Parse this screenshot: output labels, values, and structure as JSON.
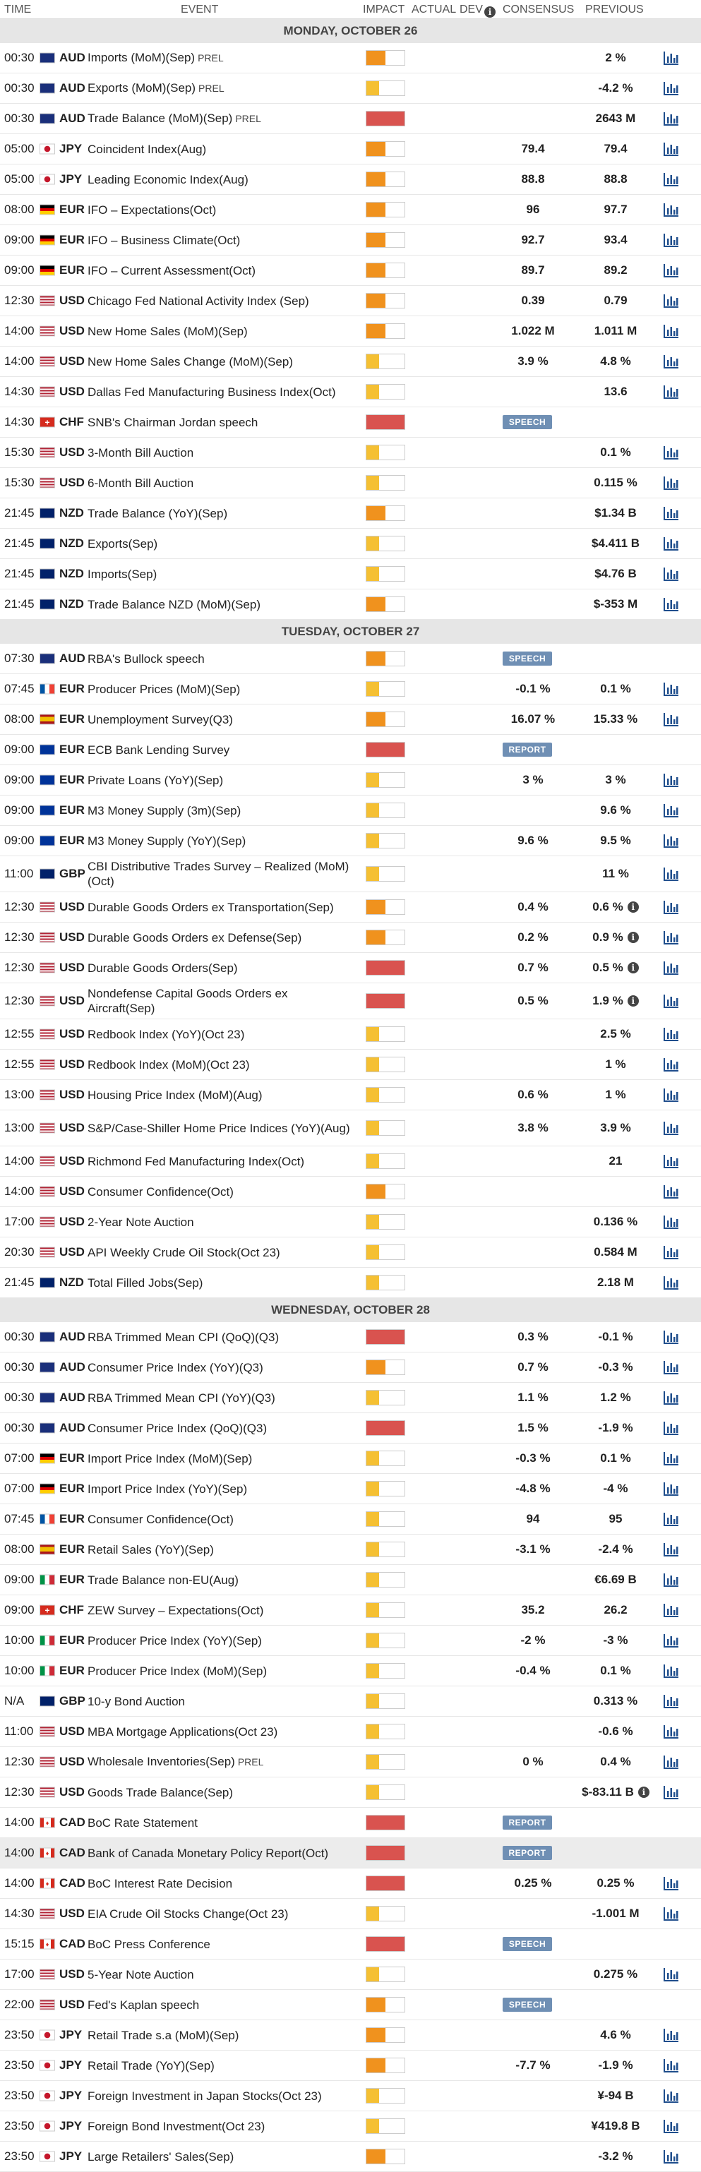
{
  "header": {
    "time": "TIME",
    "event": "EVENT",
    "impact": "IMPACT",
    "actual": "ACTUAL",
    "dev": "DEV",
    "consensus": "CONSENSUS",
    "previous": "PREVIOUS"
  },
  "colors": {
    "high": "#d9534f",
    "medium": "#f0921e",
    "low": "#f5c033",
    "badge": "#6f8fb4"
  },
  "days": [
    {
      "label": "MONDAY, OCTOBER 26",
      "rows": [
        {
          "time": "00:30",
          "flag": "au",
          "cur": "AUD",
          "event": "Imports (MoM)(Sep)",
          "tag": "PREL",
          "impact": "medium",
          "cons": "",
          "prev": "2 %",
          "chart": true
        },
        {
          "time": "00:30",
          "flag": "au",
          "cur": "AUD",
          "event": "Exports (MoM)(Sep)",
          "tag": "PREL",
          "impact": "low",
          "cons": "",
          "prev": "-4.2 %",
          "chart": true
        },
        {
          "time": "00:30",
          "flag": "au",
          "cur": "AUD",
          "event": "Trade Balance (MoM)(Sep)",
          "tag": "PREL",
          "impact": "high",
          "cons": "",
          "prev": "2643 M",
          "chart": true
        },
        {
          "time": "05:00",
          "flag": "jp",
          "cur": "JPY",
          "event": "Coincident Index(Aug)",
          "impact": "medium",
          "cons": "79.4",
          "prev": "79.4",
          "chart": true
        },
        {
          "time": "05:00",
          "flag": "jp",
          "cur": "JPY",
          "event": "Leading Economic Index(Aug)",
          "impact": "medium",
          "cons": "88.8",
          "prev": "88.8",
          "chart": true
        },
        {
          "time": "08:00",
          "flag": "de",
          "cur": "EUR",
          "event": "IFO – Expectations(Oct)",
          "impact": "medium",
          "cons": "96",
          "prev": "97.7",
          "chart": true
        },
        {
          "time": "09:00",
          "flag": "de",
          "cur": "EUR",
          "event": "IFO – Business Climate(Oct)",
          "impact": "medium",
          "cons": "92.7",
          "prev": "93.4",
          "chart": true
        },
        {
          "time": "09:00",
          "flag": "de",
          "cur": "EUR",
          "event": "IFO – Current Assessment(Oct)",
          "impact": "medium",
          "cons": "89.7",
          "prev": "89.2",
          "chart": true
        },
        {
          "time": "12:30",
          "flag": "us",
          "cur": "USD",
          "event": "Chicago Fed National Activity Index (Sep)",
          "impact": "medium",
          "cons": "0.39",
          "prev": "0.79",
          "chart": true
        },
        {
          "time": "14:00",
          "flag": "us",
          "cur": "USD",
          "event": "New Home Sales (MoM)(Sep)",
          "impact": "medium",
          "cons": "1.022 M",
          "prev": "1.011 M",
          "chart": true
        },
        {
          "time": "14:00",
          "flag": "us",
          "cur": "USD",
          "event": "New Home Sales Change (MoM)(Sep)",
          "impact": "low",
          "cons": "3.9 %",
          "prev": "4.8 %",
          "chart": true
        },
        {
          "time": "14:30",
          "flag": "us",
          "cur": "USD",
          "event": "Dallas Fed Manufacturing Business Index(Oct)",
          "impact": "low",
          "cons": "",
          "prev": "13.6",
          "chart": true
        },
        {
          "time": "14:30",
          "flag": "ch",
          "cur": "CHF",
          "event": "SNB's Chairman Jordan speech",
          "impact": "high",
          "badge": "SPEECH",
          "prev": "",
          "chart": false
        },
        {
          "time": "15:30",
          "flag": "us",
          "cur": "USD",
          "event": "3-Month Bill Auction",
          "impact": "low",
          "cons": "",
          "prev": "0.1 %",
          "chart": true
        },
        {
          "time": "15:30",
          "flag": "us",
          "cur": "USD",
          "event": "6-Month Bill Auction",
          "impact": "low",
          "cons": "",
          "prev": "0.115 %",
          "chart": true
        },
        {
          "time": "21:45",
          "flag": "nz",
          "cur": "NZD",
          "event": "Trade Balance (YoY)(Sep)",
          "impact": "medium",
          "cons": "",
          "prev": "$1.34 B",
          "chart": true
        },
        {
          "time": "21:45",
          "flag": "nz",
          "cur": "NZD",
          "event": "Exports(Sep)",
          "impact": "low",
          "cons": "",
          "prev": "$4.411 B",
          "chart": true
        },
        {
          "time": "21:45",
          "flag": "nz",
          "cur": "NZD",
          "event": "Imports(Sep)",
          "impact": "low",
          "cons": "",
          "prev": "$4.76 B",
          "chart": true
        },
        {
          "time": "21:45",
          "flag": "nz",
          "cur": "NZD",
          "event": "Trade Balance NZD (MoM)(Sep)",
          "impact": "medium",
          "cons": "",
          "prev": "$-353 M",
          "chart": true
        }
      ]
    },
    {
      "label": "TUESDAY, OCTOBER 27",
      "rows": [
        {
          "time": "07:30",
          "flag": "au",
          "cur": "AUD",
          "event": "RBA's Bullock speech",
          "impact": "medium",
          "badge": "SPEECH",
          "prev": "",
          "chart": false
        },
        {
          "time": "07:45",
          "flag": "fr",
          "cur": "EUR",
          "event": "Producer Prices (MoM)(Sep)",
          "impact": "low",
          "cons": "-0.1 %",
          "prev": "0.1 %",
          "chart": true
        },
        {
          "time": "08:00",
          "flag": "es",
          "cur": "EUR",
          "event": "Unemployment Survey(Q3)",
          "impact": "medium",
          "cons": "16.07 %",
          "prev": "15.33 %",
          "chart": true
        },
        {
          "time": "09:00",
          "flag": "eu",
          "cur": "EUR",
          "event": "ECB Bank Lending Survey",
          "impact": "high",
          "badge": "REPORT",
          "prev": "",
          "chart": false
        },
        {
          "time": "09:00",
          "flag": "eu",
          "cur": "EUR",
          "event": "Private Loans (YoY)(Sep)",
          "impact": "low",
          "cons": "3 %",
          "prev": "3 %",
          "chart": true
        },
        {
          "time": "09:00",
          "flag": "eu",
          "cur": "EUR",
          "event": "M3 Money Supply (3m)(Sep)",
          "impact": "low",
          "cons": "",
          "prev": "9.6 %",
          "chart": true
        },
        {
          "time": "09:00",
          "flag": "eu",
          "cur": "EUR",
          "event": "M3 Money Supply (YoY)(Sep)",
          "impact": "low",
          "cons": "9.6 %",
          "prev": "9.5 %",
          "chart": true
        },
        {
          "time": "11:00",
          "flag": "gb",
          "cur": "GBP",
          "event": "CBI Distributive Trades Survey – Realized (MoM)(Oct)",
          "impact": "low",
          "cons": "",
          "prev": "11 %",
          "chart": true,
          "tall": true
        },
        {
          "time": "12:30",
          "flag": "us",
          "cur": "USD",
          "event": "Durable Goods Orders ex Transportation(Sep)",
          "impact": "medium",
          "cons": "0.4 %",
          "prev": "0.6 %",
          "info": true,
          "chart": true
        },
        {
          "time": "12:30",
          "flag": "us",
          "cur": "USD",
          "event": "Durable Goods Orders ex Defense(Sep)",
          "impact": "medium",
          "cons": "0.2 %",
          "prev": "0.9 %",
          "info": true,
          "chart": true
        },
        {
          "time": "12:30",
          "flag": "us",
          "cur": "USD",
          "event": "Durable Goods Orders(Sep)",
          "impact": "high",
          "cons": "0.7 %",
          "prev": "0.5 %",
          "info": true,
          "chart": true
        },
        {
          "time": "12:30",
          "flag": "us",
          "cur": "USD",
          "event": "Nondefense Capital Goods Orders ex Aircraft(Sep)",
          "impact": "high",
          "cons": "0.5 %",
          "prev": "1.9 %",
          "info": true,
          "chart": true,
          "tall": true
        },
        {
          "time": "12:55",
          "flag": "us",
          "cur": "USD",
          "event": "Redbook Index (YoY)(Oct 23)",
          "impact": "low",
          "cons": "",
          "prev": "2.5 %",
          "chart": true
        },
        {
          "time": "12:55",
          "flag": "us",
          "cur": "USD",
          "event": "Redbook Index (MoM)(Oct 23)",
          "impact": "low",
          "cons": "",
          "prev": "1 %",
          "chart": true
        },
        {
          "time": "13:00",
          "flag": "us",
          "cur": "USD",
          "event": "Housing Price Index (MoM)(Aug)",
          "impact": "low",
          "cons": "0.6 %",
          "prev": "1 %",
          "chart": true
        },
        {
          "time": "13:00",
          "flag": "us",
          "cur": "USD",
          "event": "S&P/Case-Shiller Home Price Indices (YoY)(Aug)",
          "impact": "low",
          "cons": "3.8 %",
          "prev": "3.9 %",
          "chart": true,
          "tall": true
        },
        {
          "time": "14:00",
          "flag": "us",
          "cur": "USD",
          "event": "Richmond Fed Manufacturing Index(Oct)",
          "impact": "low",
          "cons": "",
          "prev": "21",
          "chart": true
        },
        {
          "time": "14:00",
          "flag": "us",
          "cur": "USD",
          "event": "Consumer Confidence(Oct)",
          "impact": "medium",
          "cons": "",
          "prev": "",
          "chart": true
        },
        {
          "time": "17:00",
          "flag": "us",
          "cur": "USD",
          "event": "2-Year Note Auction",
          "impact": "low",
          "cons": "",
          "prev": "0.136 %",
          "chart": true
        },
        {
          "time": "20:30",
          "flag": "us",
          "cur": "USD",
          "event": "API Weekly Crude Oil Stock(Oct 23)",
          "impact": "low",
          "cons": "",
          "prev": "0.584 M",
          "chart": true
        },
        {
          "time": "21:45",
          "flag": "nz",
          "cur": "NZD",
          "event": "Total Filled Jobs(Sep)",
          "impact": "low",
          "cons": "",
          "prev": "2.18 M",
          "chart": true
        }
      ]
    },
    {
      "label": "WEDNESDAY, OCTOBER 28",
      "rows": [
        {
          "time": "00:30",
          "flag": "au",
          "cur": "AUD",
          "event": "RBA Trimmed Mean CPI (QoQ)(Q3)",
          "impact": "high",
          "cons": "0.3 %",
          "prev": "-0.1 %",
          "chart": true
        },
        {
          "time": "00:30",
          "flag": "au",
          "cur": "AUD",
          "event": "Consumer Price Index (YoY)(Q3)",
          "impact": "medium",
          "cons": "0.7 %",
          "prev": "-0.3 %",
          "chart": true
        },
        {
          "time": "00:30",
          "flag": "au",
          "cur": "AUD",
          "event": "RBA Trimmed Mean CPI (YoY)(Q3)",
          "impact": "low",
          "cons": "1.1 %",
          "prev": "1.2 %",
          "chart": true
        },
        {
          "time": "00:30",
          "flag": "au",
          "cur": "AUD",
          "event": "Consumer Price Index (QoQ)(Q3)",
          "impact": "high",
          "cons": "1.5 %",
          "prev": "-1.9 %",
          "chart": true
        },
        {
          "time": "07:00",
          "flag": "de",
          "cur": "EUR",
          "event": "Import Price Index (MoM)(Sep)",
          "impact": "low",
          "cons": "-0.3 %",
          "prev": "0.1 %",
          "chart": true
        },
        {
          "time": "07:00",
          "flag": "de",
          "cur": "EUR",
          "event": "Import Price Index (YoY)(Sep)",
          "impact": "low",
          "cons": "-4.8 %",
          "prev": "-4 %",
          "chart": true
        },
        {
          "time": "07:45",
          "flag": "fr",
          "cur": "EUR",
          "event": "Consumer Confidence(Oct)",
          "impact": "low",
          "cons": "94",
          "prev": "95",
          "chart": true
        },
        {
          "time": "08:00",
          "flag": "es",
          "cur": "EUR",
          "event": "Retail Sales (YoY)(Sep)",
          "impact": "low",
          "cons": "-3.1 %",
          "prev": "-2.4 %",
          "chart": true
        },
        {
          "time": "09:00",
          "flag": "it",
          "cur": "EUR",
          "event": "Trade Balance non-EU(Aug)",
          "impact": "low",
          "cons": "",
          "prev": "€6.69 B",
          "chart": true
        },
        {
          "time": "09:00",
          "flag": "ch",
          "cur": "CHF",
          "event": "ZEW Survey – Expectations(Oct)",
          "impact": "low",
          "cons": "35.2",
          "prev": "26.2",
          "chart": true
        },
        {
          "time": "10:00",
          "flag": "it",
          "cur": "EUR",
          "event": "Producer Price Index (YoY)(Sep)",
          "impact": "low",
          "cons": "-2 %",
          "prev": "-3 %",
          "chart": true
        },
        {
          "time": "10:00",
          "flag": "it",
          "cur": "EUR",
          "event": "Producer Price Index (MoM)(Sep)",
          "impact": "low",
          "cons": "-0.4 %",
          "prev": "0.1 %",
          "chart": true
        },
        {
          "time": "N/A",
          "flag": "gb",
          "cur": "GBP",
          "event": "10-y Bond Auction",
          "impact": "low",
          "cons": "",
          "prev": "0.313 %",
          "chart": true
        },
        {
          "time": "11:00",
          "flag": "us",
          "cur": "USD",
          "event": "MBA Mortgage Applications(Oct 23)",
          "impact": "low",
          "cons": "",
          "prev": "-0.6 %",
          "chart": true
        },
        {
          "time": "12:30",
          "flag": "us",
          "cur": "USD",
          "event": "Wholesale Inventories(Sep)",
          "tag": "PREL",
          "impact": "low",
          "cons": "0 %",
          "prev": "0.4 %",
          "chart": true
        },
        {
          "time": "12:30",
          "flag": "us",
          "cur": "USD",
          "event": "Goods Trade Balance(Sep)",
          "impact": "low",
          "cons": "",
          "prev": "$-83.11 B",
          "info": true,
          "chart": true
        },
        {
          "time": "14:00",
          "flag": "ca",
          "cur": "CAD",
          "event": "BoC Rate Statement",
          "impact": "high",
          "badge": "REPORT",
          "prev": "",
          "chart": false
        },
        {
          "time": "14:00",
          "flag": "ca",
          "cur": "CAD",
          "event": "Bank of Canada Monetary Policy Report(Oct)",
          "impact": "high",
          "badge": "REPORT",
          "prev": "",
          "chart": false,
          "hl": true
        },
        {
          "time": "14:00",
          "flag": "ca",
          "cur": "CAD",
          "event": "BoC Interest Rate Decision",
          "impact": "high",
          "cons": "0.25 %",
          "prev": "0.25 %",
          "chart": true
        },
        {
          "time": "14:30",
          "flag": "us",
          "cur": "USD",
          "event": "EIA Crude Oil Stocks Change(Oct 23)",
          "impact": "low",
          "cons": "",
          "prev": "-1.001 M",
          "chart": true
        },
        {
          "time": "15:15",
          "flag": "ca",
          "cur": "CAD",
          "event": "BoC Press Conference",
          "impact": "high",
          "badge": "SPEECH",
          "prev": "",
          "chart": false
        },
        {
          "time": "17:00",
          "flag": "us",
          "cur": "USD",
          "event": "5-Year Note Auction",
          "impact": "low",
          "cons": "",
          "prev": "0.275 %",
          "chart": true
        },
        {
          "time": "22:00",
          "flag": "us",
          "cur": "USD",
          "event": "Fed's Kaplan speech",
          "impact": "medium",
          "badge": "SPEECH",
          "prev": "",
          "chart": false
        },
        {
          "time": "23:50",
          "flag": "jp",
          "cur": "JPY",
          "event": "Retail Trade s.a (MoM)(Sep)",
          "impact": "medium",
          "cons": "",
          "prev": "4.6 %",
          "chart": true
        },
        {
          "time": "23:50",
          "flag": "jp",
          "cur": "JPY",
          "event": "Retail Trade (YoY)(Sep)",
          "impact": "medium",
          "cons": "-7.7 %",
          "prev": "-1.9 %",
          "chart": true
        },
        {
          "time": "23:50",
          "flag": "jp",
          "cur": "JPY",
          "event": "Foreign Investment in Japan Stocks(Oct 23)",
          "impact": "low",
          "cons": "",
          "prev": "¥-94 B",
          "chart": true
        },
        {
          "time": "23:50",
          "flag": "jp",
          "cur": "JPY",
          "event": "Foreign Bond Investment(Oct 23)",
          "impact": "low",
          "cons": "",
          "prev": "¥419.8 B",
          "chart": true
        },
        {
          "time": "23:50",
          "flag": "jp",
          "cur": "JPY",
          "event": "Large Retailers' Sales(Sep)",
          "impact": "medium",
          "cons": "",
          "prev": "-3.2 %",
          "chart": true
        }
      ]
    }
  ]
}
